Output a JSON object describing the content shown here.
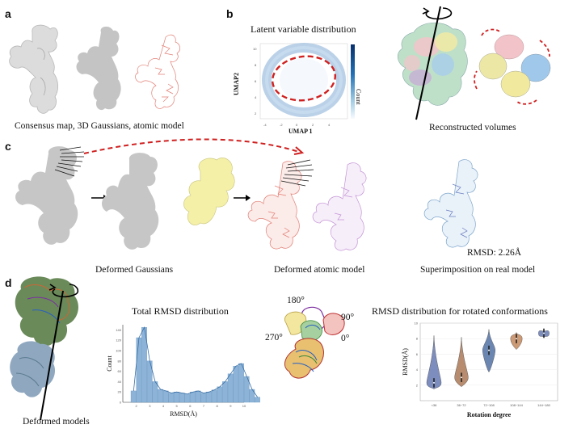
{
  "panels": {
    "a": {
      "letter": "a",
      "caption": "Consensus map, 3D Gaussians, atomic model"
    },
    "b": {
      "letter": "b",
      "umap_title": "Latent variable distribution",
      "umap_xlabel": "UMAP 1",
      "umap_ylabel": "UMAP2",
      "colorbar_label": "Count",
      "caption": "Reconstructed volumes"
    },
    "c": {
      "letter": "c",
      "caption_left": "Deformed Gaussians",
      "caption_mid": "Deformed atomic model",
      "caption_right": "Superimposition on real model",
      "rmsd_value": "RMSD: 2.26Å"
    },
    "d": {
      "letter": "d",
      "caption_left": "Deformed models",
      "hist_title": "Total RMSD distribution",
      "angles": [
        "180°",
        "90°",
        "270°",
        "0°"
      ],
      "violin_title": "RMSD distribution for rotated conformations",
      "violin_xlabel": "Rotation degree",
      "violin_ylabel": "RMSD(Å)"
    }
  },
  "colors": {
    "salmon": "#e8837a",
    "yellow": "#f4f0a0",
    "grey": "#bdbdbd",
    "violet": "#c9a3d8",
    "lightblue": "#a9c8e6",
    "red_dashed": "#d02020",
    "hist_bar": "#8db4d8"
  },
  "chart_data": [
    {
      "type": "bar",
      "title": "Total RMSD distribution",
      "xlabel": "RMSD(Å)",
      "ylabel": "Count",
      "xlim": [
        1,
        10
      ],
      "ylim": [
        0,
        150
      ],
      "x_ticks": [
        "2",
        "3",
        "4",
        "5",
        "6",
        "7",
        "8",
        "9",
        "10"
      ],
      "y_ticks": [
        "0",
        "20",
        "40",
        "60",
        "80",
        "100",
        "120",
        "140"
      ],
      "bin_edges_start": 1.6,
      "bin_width": 0.4,
      "values": [
        22,
        125,
        145,
        80,
        40,
        25,
        22,
        18,
        20,
        18,
        16,
        20,
        22,
        18,
        20,
        24,
        30,
        40,
        55,
        70,
        75,
        50,
        25,
        10
      ]
    },
    {
      "type": "violin",
      "title": "RMSD distribution for rotated conformations",
      "xlabel": "Rotation degree",
      "ylabel": "RMSD(Å)",
      "ylim": [
        0,
        10
      ],
      "y_ticks": [
        "2",
        "4",
        "6",
        "8",
        "10"
      ],
      "categories": [
        "<36",
        "36~72",
        "72~108",
        "108~144",
        "144~180"
      ],
      "medians": [
        2.3,
        3.0,
        6.5,
        8.0,
        8.7
      ],
      "mins": [
        1.5,
        1.8,
        3.7,
        6.6,
        8.2
      ],
      "maxs": [
        8.4,
        8.2,
        9.2,
        8.8,
        9.0
      ],
      "colors": [
        "#6f82b8",
        "#b08060",
        "#5d7aaa",
        "#c89068",
        "#6f82b8"
      ]
    }
  ]
}
